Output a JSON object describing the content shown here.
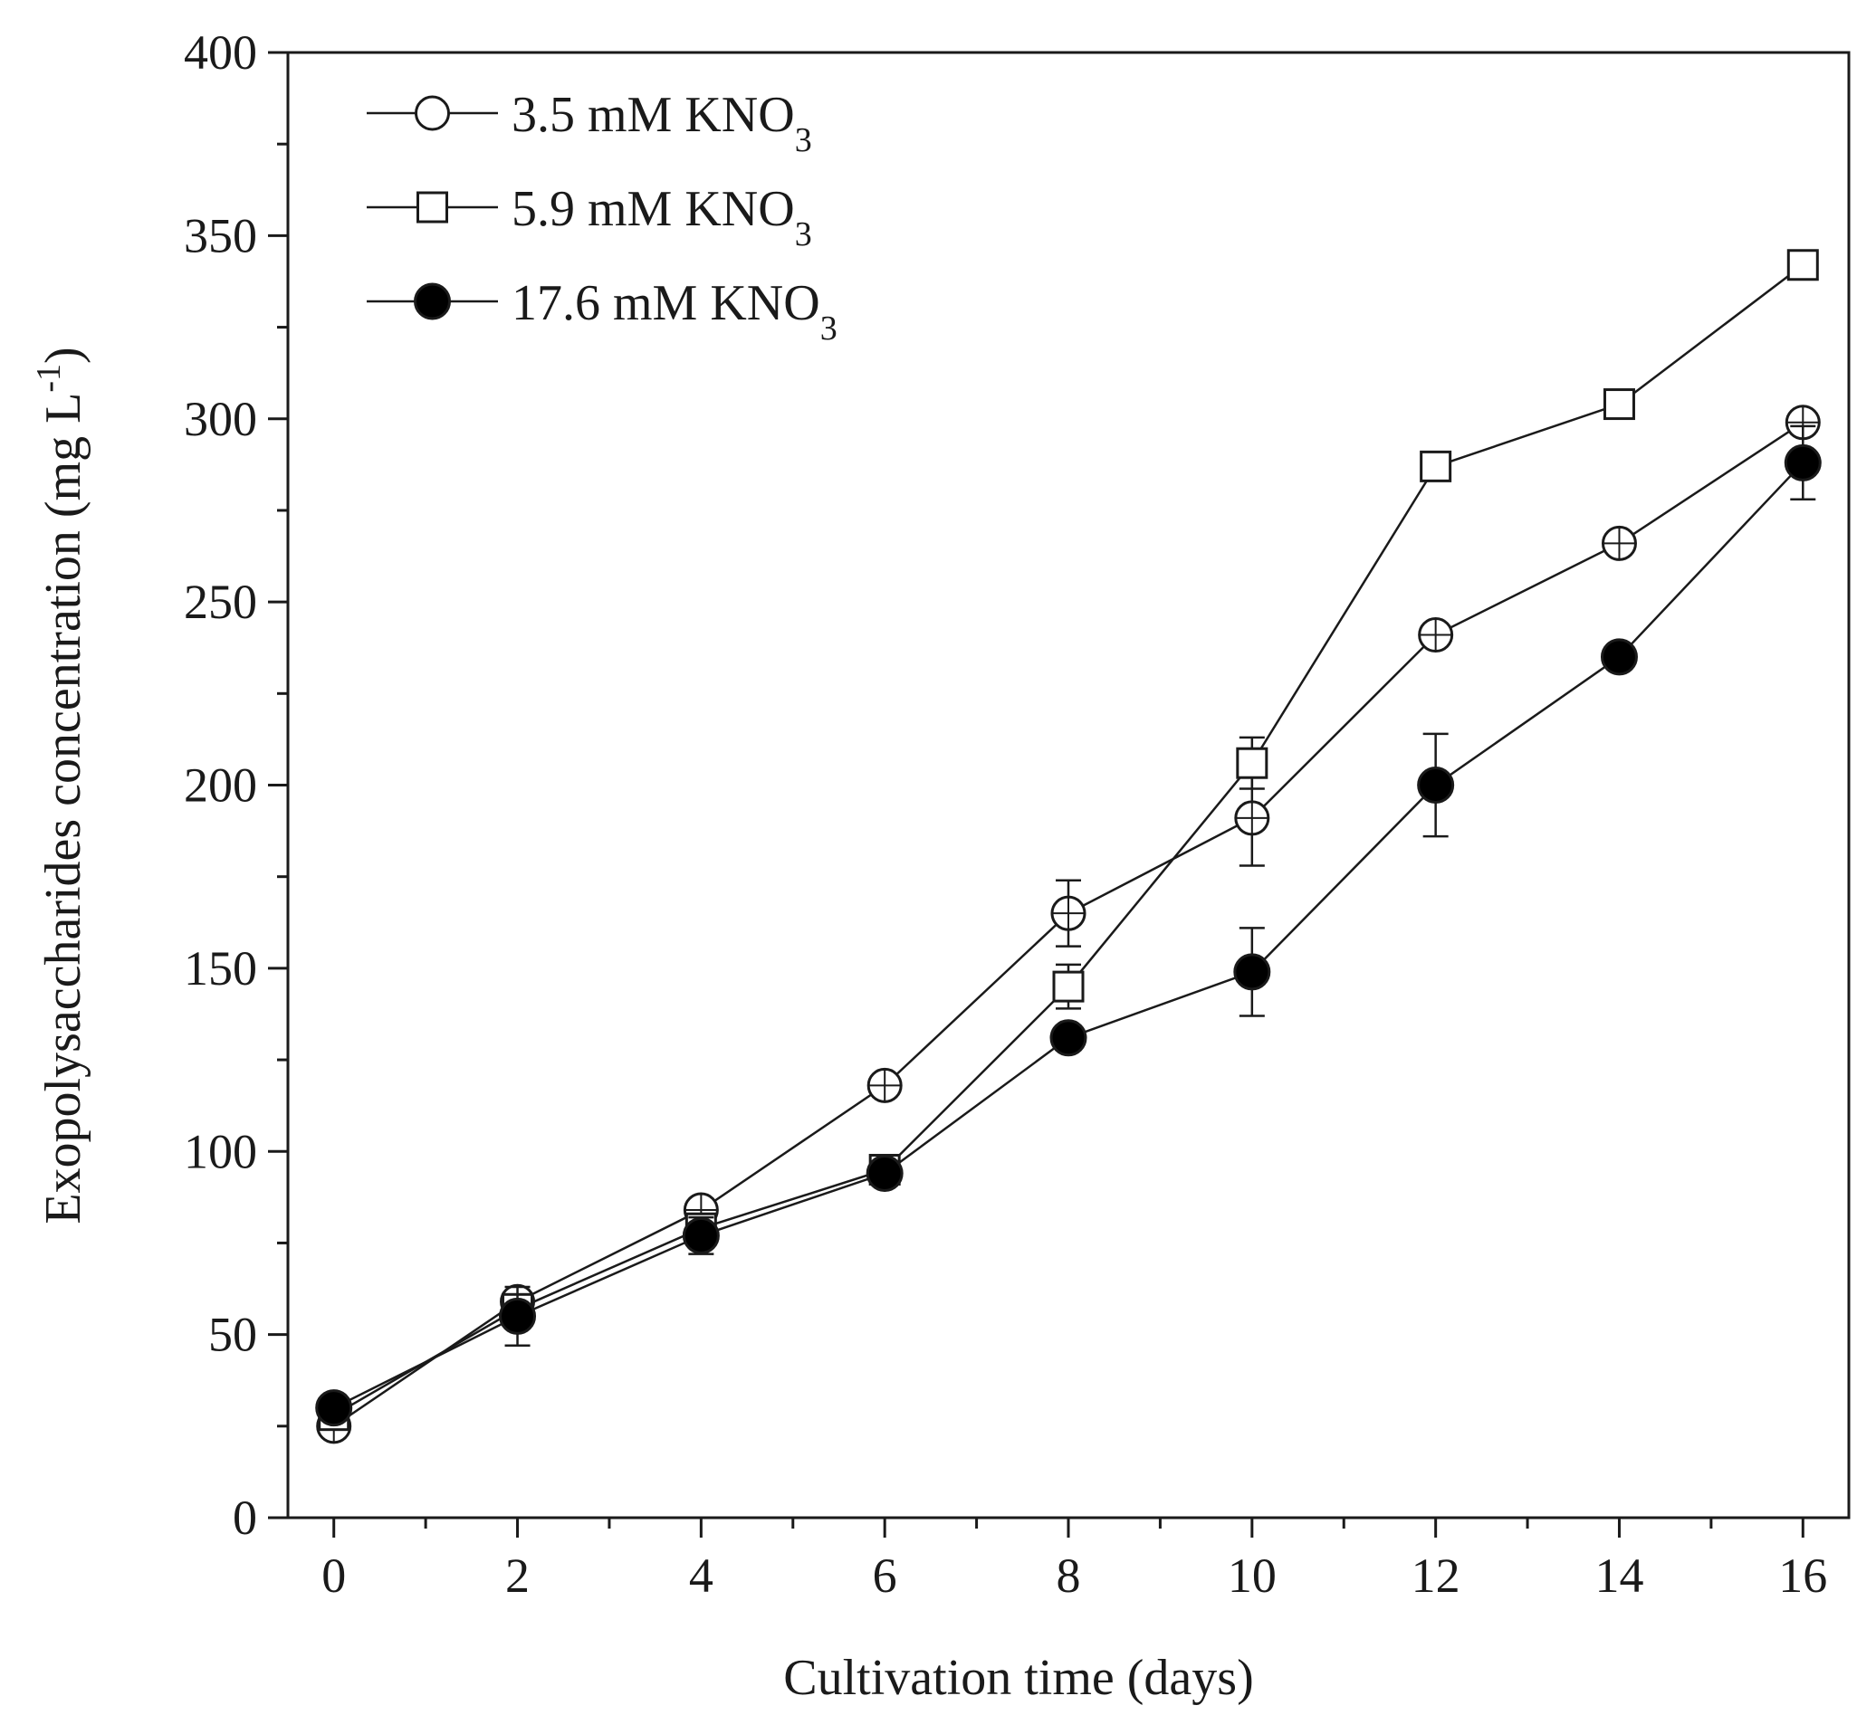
{
  "chart_data": {
    "type": "line",
    "title": "",
    "xlabel": "Cultivation time (days)",
    "ylabel": "Exopolysaccharides concentration (mg L",
    "ylabel_sup": "-1",
    "ylabel_close": ")",
    "xlim": [
      -0.5,
      16.5
    ],
    "ylim": [
      0,
      400
    ],
    "xticks": [
      0,
      2,
      4,
      6,
      8,
      10,
      12,
      14,
      16
    ],
    "yticks": [
      0,
      50,
      100,
      150,
      200,
      250,
      300,
      350,
      400
    ],
    "grid": false,
    "legend_position": "top-left",
    "series": [
      {
        "name": "3.5 mM KNO",
        "subscript": "3",
        "marker": "open-circle",
        "x": [
          0,
          2,
          4,
          6,
          8,
          10,
          12,
          14,
          16
        ],
        "y": [
          25,
          59,
          84,
          118,
          165,
          191,
          241,
          266,
          299
        ],
        "err": [
          3,
          3,
          3,
          3,
          9,
          13,
          3,
          3,
          3
        ]
      },
      {
        "name": "5.9 mM KNO",
        "subscript": "3",
        "marker": "open-square",
        "x": [
          0,
          2,
          4,
          6,
          8,
          10,
          12,
          14,
          16
        ],
        "y": [
          28,
          57,
          79,
          95,
          145,
          206,
          287,
          304,
          342
        ],
        "err": [
          3,
          3,
          3,
          3,
          6,
          7,
          3,
          3,
          3
        ]
      },
      {
        "name": "17.6 mM KNO",
        "subscript": "3",
        "marker": "filled-circle",
        "x": [
          0,
          2,
          4,
          6,
          8,
          10,
          12,
          14,
          16
        ],
        "y": [
          30,
          55,
          77,
          94,
          131,
          149,
          200,
          235,
          288
        ],
        "err": [
          3,
          8,
          5,
          3,
          3,
          12,
          14,
          3,
          10
        ]
      }
    ]
  }
}
